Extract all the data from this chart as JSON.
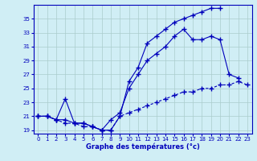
{
  "xlabel": "Graphe des températures (°c)",
  "bg_color": "#d0eef5",
  "line_color": "#0000bb",
  "grid_color": "#aacccc",
  "ylim": [
    18.5,
    37.0
  ],
  "xlim": [
    -0.5,
    23.5
  ],
  "yticks": [
    19,
    21,
    23,
    25,
    27,
    29,
    31,
    33,
    35
  ],
  "xticks": [
    0,
    1,
    2,
    3,
    4,
    5,
    6,
    7,
    8,
    9,
    10,
    11,
    12,
    13,
    14,
    15,
    16,
    17,
    18,
    19,
    20,
    21,
    22,
    23
  ],
  "line1_x": [
    0,
    1,
    2,
    3,
    4,
    5,
    6,
    7,
    8,
    9,
    10,
    11,
    12,
    13,
    14,
    15,
    16,
    17,
    18,
    19,
    20
  ],
  "line1_y": [
    21.0,
    21.0,
    20.5,
    20.5,
    20.0,
    20.0,
    19.5,
    19.0,
    19.0,
    21.0,
    26.0,
    28.0,
    31.5,
    32.5,
    33.5,
    34.5,
    35.0,
    35.5,
    36.0,
    36.5,
    36.5
  ],
  "line2_x": [
    0,
    1,
    2,
    3,
    4,
    5,
    6,
    7,
    8,
    9,
    10,
    11,
    12,
    13,
    14,
    15,
    16,
    17,
    18,
    19,
    20,
    21,
    22
  ],
  "line2_y": [
    21.0,
    21.0,
    20.5,
    23.5,
    20.0,
    20.0,
    19.5,
    19.0,
    20.5,
    21.5,
    25.0,
    27.0,
    29.0,
    30.0,
    31.0,
    32.5,
    33.5,
    32.0,
    32.0,
    32.5,
    32.0,
    27.0,
    26.5
  ],
  "line3_x": [
    0,
    1,
    2,
    3,
    4,
    5,
    6,
    7,
    8,
    9,
    10,
    11,
    12,
    13,
    14,
    15,
    16,
    17,
    18,
    19,
    20,
    21,
    22,
    23
  ],
  "line3_y": [
    21.0,
    21.0,
    20.5,
    20.0,
    20.0,
    19.5,
    19.5,
    19.0,
    19.0,
    21.0,
    21.5,
    22.0,
    22.5,
    23.0,
    23.5,
    24.0,
    24.5,
    24.5,
    25.0,
    25.0,
    25.5,
    25.5,
    26.0,
    25.5
  ]
}
